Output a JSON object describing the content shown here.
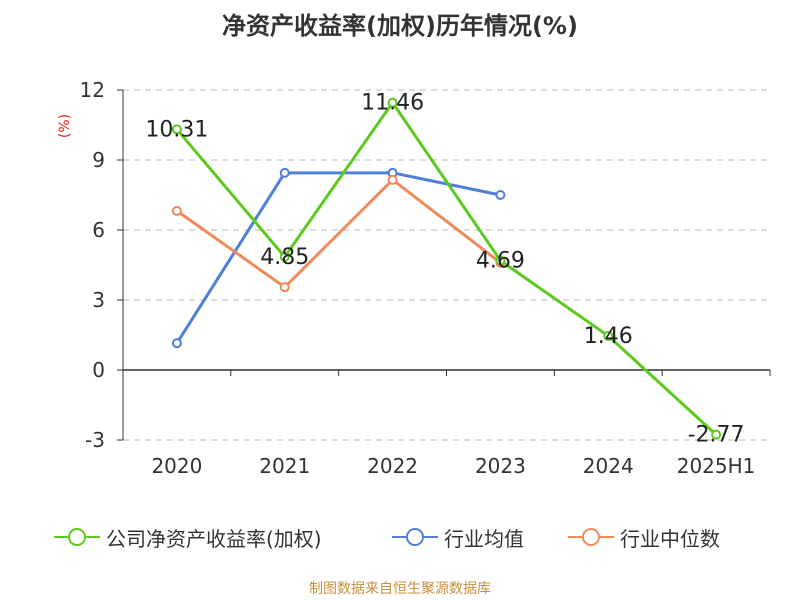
{
  "chart_data": {
    "type": "line",
    "title": "净资产收益率(加权)历年情况(%)",
    "ylabel": "(%)",
    "categories": [
      "2020",
      "2021",
      "2022",
      "2023",
      "2024",
      "2025H1"
    ],
    "ylim": [
      -3,
      12
    ],
    "yticks": [
      -3,
      0,
      3,
      6,
      9,
      12
    ],
    "grid": true,
    "legend_position": "bottom",
    "series": [
      {
        "name": "公司净资产收益率(加权)",
        "color": "#5cc91e",
        "values": [
          10.31,
          4.85,
          11.46,
          4.69,
          1.46,
          -2.77
        ],
        "labels": [
          "10.31",
          "4.85",
          "11.46",
          "4.69",
          "1.46",
          "-2.77"
        ]
      },
      {
        "name": "行业均值",
        "color": "#4f7fd9",
        "values": [
          1.15,
          8.45,
          8.45,
          7.5,
          null,
          null
        ]
      },
      {
        "name": "行业中位数",
        "color": "#f08a5b",
        "values": [
          6.82,
          3.55,
          8.15,
          4.6,
          null,
          null
        ]
      }
    ]
  },
  "source_note": "制图数据来自恒生聚源数据库"
}
